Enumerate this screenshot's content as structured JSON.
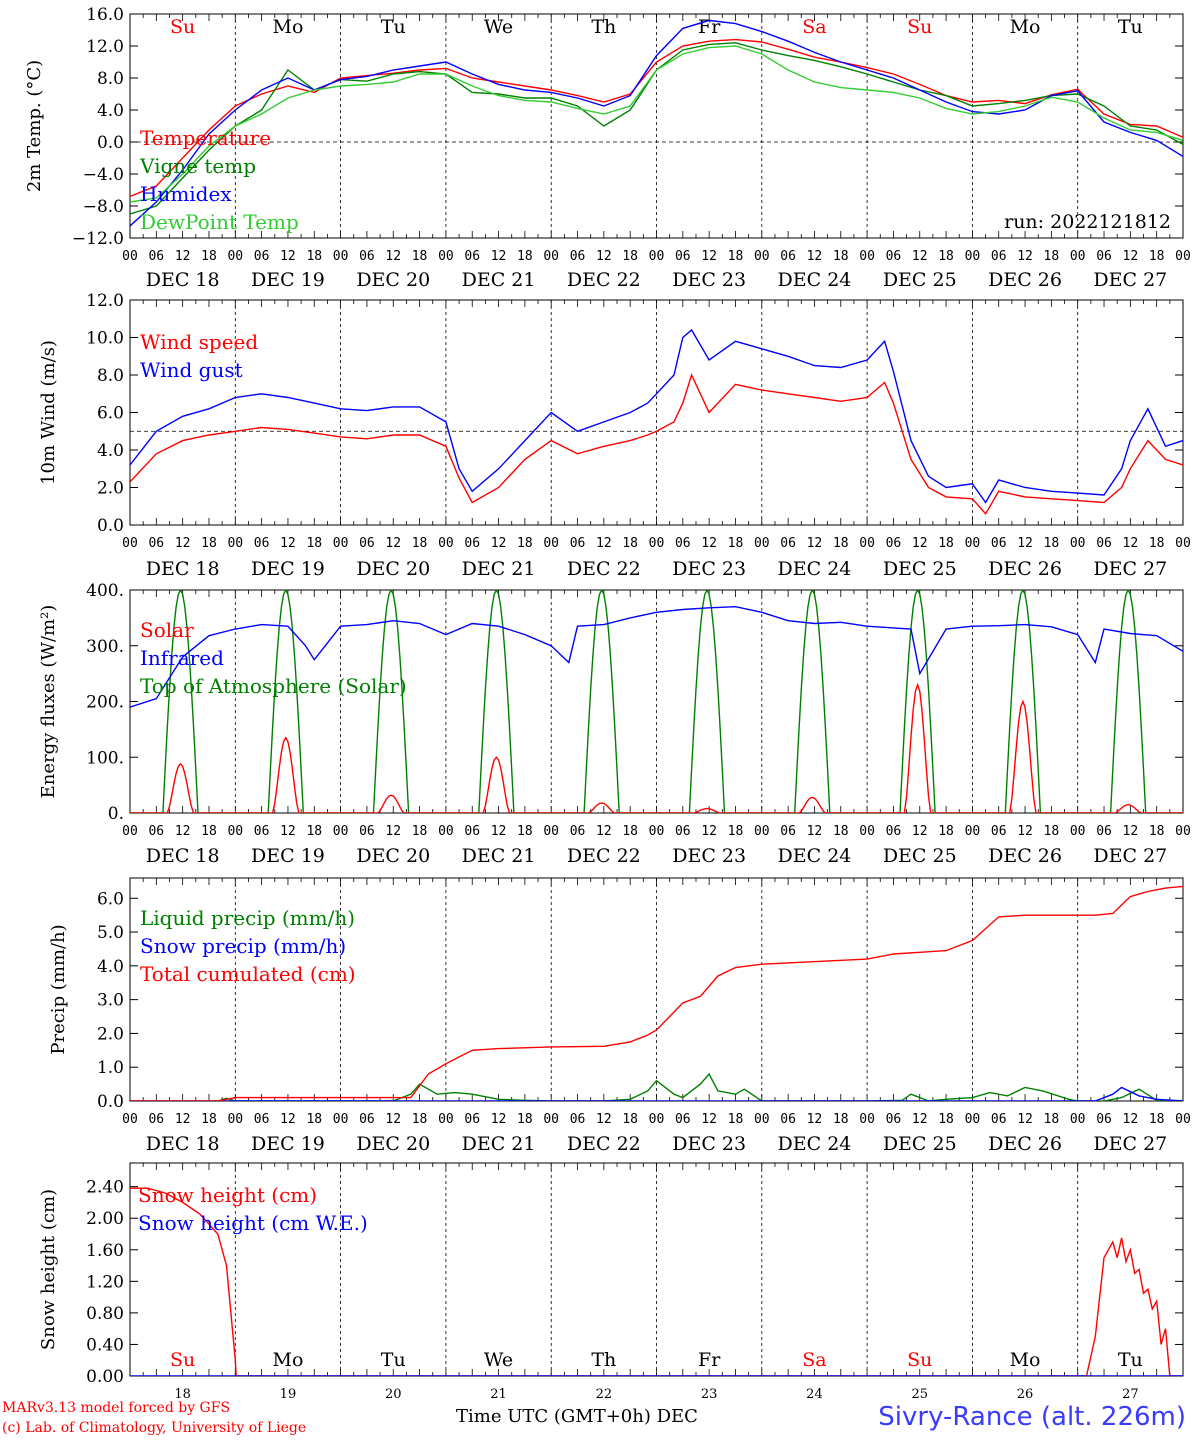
{
  "footer": {
    "model_line": "MARv3.13 model forced by GFS",
    "credit_line": "(c) Lab. of Climatology, University of Liege",
    "axis_title": "Time UTC (GMT+0h)",
    "month": "DEC",
    "station": "Sivry-Rance (alt. 226m)"
  },
  "days": {
    "weekday_labels": [
      "Su",
      "Mo",
      "Tu",
      "We",
      "Th",
      "Fr",
      "Sa",
      "Su",
      "Mo",
      "Tu"
    ],
    "weekday_colors": [
      "#ff0000",
      "#000000",
      "#000000",
      "#000000",
      "#000000",
      "#000000",
      "#ff0000",
      "#ff0000",
      "#000000",
      "#000000"
    ],
    "date_labels": [
      "DEC 18",
      "DEC 19",
      "DEC 20",
      "DEC 21",
      "DEC 22",
      "DEC 23",
      "DEC 24",
      "DEC 25",
      "DEC 26",
      "DEC 27"
    ],
    "day_numbers": [
      "18",
      "19",
      "20",
      "21",
      "22",
      "23",
      "24",
      "25",
      "26",
      "27"
    ],
    "hour_labels": [
      "00",
      "06",
      "12",
      "18"
    ]
  },
  "chart_data": [
    {
      "id": "temperature",
      "type": "line",
      "ylabel": "2m Temp. (°C)",
      "ylim": [
        -12,
        16
      ],
      "yticks": [
        "16.0",
        "12.0",
        "8.0",
        "4.0",
        "0.0",
        "−4.0",
        "−8.0",
        "−12.0"
      ],
      "yticks_values": [
        16,
        12,
        8,
        4,
        0,
        -4,
        -8,
        -12
      ],
      "reference_line": 0,
      "annotation": "run: 2022121812",
      "x_unit": "hours from DEC 18 00 UTC",
      "xlim": [
        0,
        240
      ],
      "series": [
        {
          "name": "Temperature",
          "color": "#ff0000",
          "x": [
            0,
            6,
            12,
            18,
            24,
            30,
            36,
            42,
            48,
            54,
            60,
            66,
            72,
            78,
            84,
            90,
            96,
            102,
            108,
            114,
            120,
            126,
            132,
            138,
            144,
            150,
            156,
            162,
            168,
            174,
            180,
            186,
            192,
            198,
            204,
            210,
            216,
            222,
            228,
            234,
            240
          ],
          "y": [
            -6.8,
            -5.5,
            -2.0,
            1.5,
            4.5,
            6.0,
            7.0,
            6.2,
            8.0,
            8.3,
            8.6,
            9.0,
            9.2,
            8.0,
            7.5,
            7.0,
            6.5,
            5.8,
            5.0,
            6.0,
            10.0,
            12.0,
            12.6,
            12.8,
            12.5,
            11.6,
            10.6,
            10.0,
            9.3,
            8.5,
            7.2,
            5.8,
            5.0,
            5.2,
            4.8,
            5.9,
            6.6,
            3.5,
            2.2,
            2.0,
            0.6
          ]
        },
        {
          "name": "Vigne temp",
          "color": "#008000",
          "x": [
            0,
            6,
            12,
            18,
            24,
            30,
            36,
            42,
            48,
            54,
            60,
            66,
            72,
            78,
            84,
            90,
            96,
            102,
            108,
            114,
            120,
            126,
            132,
            138,
            144,
            150,
            156,
            162,
            168,
            174,
            180,
            186,
            192,
            198,
            204,
            210,
            216,
            222,
            228,
            234,
            240
          ],
          "y": [
            -9.0,
            -8.0,
            -4.5,
            -1.0,
            2.0,
            4.0,
            9.0,
            6.5,
            7.8,
            7.6,
            8.5,
            8.8,
            8.5,
            6.2,
            6.0,
            5.5,
            5.5,
            4.5,
            2.0,
            4.0,
            9.0,
            11.5,
            12.2,
            12.4,
            11.5,
            10.8,
            10.2,
            9.4,
            8.5,
            7.5,
            6.5,
            5.8,
            4.5,
            4.8,
            5.2,
            5.8,
            6.0,
            4.5,
            2.0,
            1.5,
            -0.3
          ]
        },
        {
          "name": "Humidex",
          "color": "#0000ff",
          "x": [
            0,
            6,
            12,
            18,
            24,
            30,
            36,
            42,
            48,
            54,
            60,
            66,
            72,
            78,
            84,
            90,
            96,
            102,
            108,
            114,
            120,
            126,
            132,
            138,
            144,
            150,
            156,
            162,
            168,
            174,
            180,
            186,
            192,
            198,
            204,
            210,
            216,
            222,
            228,
            234,
            240
          ],
          "y": [
            -10.5,
            -7.5,
            -3.5,
            1.0,
            4.0,
            6.5,
            8.0,
            6.5,
            7.8,
            8.2,
            9.0,
            9.5,
            10.0,
            8.5,
            7.2,
            6.5,
            6.2,
            5.5,
            4.5,
            5.8,
            10.8,
            14.2,
            15.2,
            14.8,
            13.8,
            12.6,
            11.2,
            10.0,
            9.0,
            8.0,
            6.5,
            5.0,
            3.8,
            3.5,
            4.0,
            5.8,
            6.4,
            2.5,
            1.2,
            0.2,
            -1.8
          ]
        },
        {
          "name": "DewPoint Temp",
          "color": "#33cc33",
          "x": [
            0,
            6,
            12,
            18,
            24,
            30,
            36,
            42,
            48,
            54,
            60,
            66,
            72,
            78,
            84,
            90,
            96,
            102,
            108,
            114,
            120,
            126,
            132,
            138,
            144,
            150,
            156,
            162,
            168,
            174,
            180,
            186,
            192,
            198,
            204,
            210,
            216,
            222,
            228,
            234,
            240
          ],
          "y": [
            -7.5,
            -7.0,
            -4.0,
            -0.5,
            2.0,
            3.5,
            5.5,
            6.5,
            7.0,
            7.2,
            7.5,
            8.5,
            8.5,
            7.0,
            5.8,
            5.2,
            5.0,
            4.2,
            3.5,
            4.5,
            9.0,
            11.0,
            11.8,
            12.0,
            11.0,
            9.0,
            7.5,
            6.8,
            6.5,
            6.2,
            5.5,
            4.2,
            3.5,
            3.8,
            4.5,
            5.6,
            5.0,
            3.0,
            1.5,
            1.2,
            0.2
          ]
        }
      ]
    },
    {
      "id": "wind",
      "type": "line",
      "ylabel": "10m Wind (m/s)",
      "ylim": [
        0,
        12
      ],
      "yticks": [
        "12.0",
        "10.0",
        "8.0",
        "6.0",
        "4.0",
        "2.0",
        "0.0"
      ],
      "yticks_values": [
        12,
        10,
        8,
        6,
        4,
        2,
        0
      ],
      "reference_line": 5,
      "x_unit": "hours from DEC 18 00 UTC",
      "xlim": [
        0,
        240
      ],
      "series": [
        {
          "name": "Wind speed",
          "color": "#ff0000",
          "x": [
            0,
            6,
            12,
            18,
            24,
            30,
            36,
            42,
            48,
            54,
            60,
            66,
            72,
            75,
            78,
            84,
            90,
            96,
            102,
            108,
            114,
            118,
            120,
            124,
            126,
            128,
            132,
            138,
            144,
            150,
            156,
            162,
            168,
            172,
            174,
            178,
            182,
            186,
            192,
            195,
            198,
            204,
            210,
            216,
            222,
            226,
            228,
            232,
            236,
            240
          ],
          "y": [
            2.3,
            3.8,
            4.5,
            4.8,
            5.0,
            5.2,
            5.1,
            4.9,
            4.7,
            4.6,
            4.8,
            4.8,
            4.2,
            2.5,
            1.2,
            2.0,
            3.5,
            4.5,
            3.8,
            4.2,
            4.5,
            4.8,
            5.0,
            5.5,
            6.5,
            8.0,
            6.0,
            7.5,
            7.2,
            7.0,
            6.8,
            6.6,
            6.8,
            7.6,
            6.5,
            3.5,
            2.0,
            1.5,
            1.4,
            0.6,
            1.8,
            1.5,
            1.4,
            1.3,
            1.2,
            2.0,
            3.0,
            4.5,
            3.5,
            3.2
          ]
        },
        {
          "name": "Wind gust",
          "color": "#0000ff",
          "x": [
            0,
            6,
            12,
            18,
            24,
            30,
            36,
            42,
            48,
            54,
            60,
            66,
            72,
            75,
            78,
            84,
            90,
            96,
            102,
            108,
            114,
            118,
            120,
            124,
            126,
            128,
            132,
            138,
            144,
            150,
            156,
            162,
            168,
            172,
            174,
            178,
            182,
            186,
            192,
            195,
            198,
            204,
            210,
            216,
            222,
            226,
            228,
            232,
            236,
            240
          ],
          "y": [
            3.2,
            5.0,
            5.8,
            6.2,
            6.8,
            7.0,
            6.8,
            6.5,
            6.2,
            6.1,
            6.3,
            6.3,
            5.5,
            3.0,
            1.8,
            3.0,
            4.5,
            6.0,
            5.0,
            5.5,
            6.0,
            6.5,
            7.0,
            8.0,
            10.0,
            10.4,
            8.8,
            9.8,
            9.4,
            9.0,
            8.5,
            8.4,
            8.8,
            9.8,
            8.2,
            4.5,
            2.6,
            2.0,
            2.2,
            1.2,
            2.4,
            2.0,
            1.8,
            1.7,
            1.6,
            3.0,
            4.5,
            6.2,
            4.2,
            4.5
          ]
        }
      ]
    },
    {
      "id": "energy",
      "type": "line",
      "ylabel": "Energy fluxes (W/m²)",
      "ylim": [
        0,
        400
      ],
      "yticks": [
        "400.",
        "300.",
        "200.",
        "100.",
        "0."
      ],
      "yticks_values": [
        400,
        300,
        200,
        100,
        0
      ],
      "x_unit": "hours from DEC 18 00 UTC",
      "xlim": [
        0,
        240
      ],
      "solar_peaks": [
        88,
        135,
        32,
        100,
        18,
        8,
        28,
        230,
        200,
        15
      ],
      "series": [
        {
          "name": "Solar",
          "color": "#ff0000"
        },
        {
          "name": "Infrared",
          "color": "#0000ff",
          "x": [
            0,
            6,
            12,
            18,
            24,
            30,
            36,
            40,
            42,
            48,
            54,
            60,
            66,
            72,
            78,
            84,
            90,
            96,
            100,
            102,
            108,
            114,
            120,
            126,
            132,
            138,
            144,
            150,
            156,
            162,
            168,
            174,
            178,
            180,
            186,
            192,
            198,
            204,
            210,
            216,
            220,
            222,
            228,
            234,
            240
          ],
          "y": [
            190,
            205,
            280,
            318,
            330,
            338,
            335,
            300,
            275,
            335,
            338,
            345,
            340,
            320,
            340,
            335,
            320,
            300,
            270,
            335,
            338,
            350,
            360,
            365,
            368,
            370,
            360,
            345,
            340,
            342,
            335,
            332,
            330,
            250,
            330,
            335,
            336,
            338,
            334,
            320,
            270,
            330,
            322,
            318,
            290
          ]
        },
        {
          "name": "Top of Atmosphere (Solar)",
          "color": "#008000"
        }
      ]
    },
    {
      "id": "precip",
      "type": "line",
      "ylabel": "Precip (mm/h)",
      "ylim": [
        0,
        6.6
      ],
      "yticks": [
        "6.0",
        "5.0",
        "4.0",
        "3.0",
        "2.0",
        "1.0",
        "0.0"
      ],
      "yticks_values": [
        6,
        5,
        4,
        3,
        2,
        1,
        0
      ],
      "x_unit": "hours from DEC 18 00 UTC",
      "xlim": [
        0,
        240
      ],
      "series": [
        {
          "name": "Liquid precip (mm/h)",
          "color": "#008000",
          "x": [
            0,
            20,
            22,
            24,
            60,
            64,
            66,
            70,
            74,
            78,
            84,
            90,
            96,
            108,
            114,
            118,
            120,
            124,
            126,
            130,
            132,
            134,
            138,
            140,
            144,
            168,
            176,
            178,
            182,
            186,
            192,
            196,
            200,
            204,
            208,
            214,
            216,
            222,
            226,
            230,
            234,
            240
          ],
          "y": [
            0,
            0,
            0.08,
            0,
            0,
            0.2,
            0.5,
            0.2,
            0.25,
            0.2,
            0.05,
            0.02,
            0,
            0,
            0.05,
            0.3,
            0.6,
            0.2,
            0.1,
            0.5,
            0.8,
            0.3,
            0.2,
            0.35,
            0,
            0,
            0.02,
            0.2,
            0,
            0.05,
            0.1,
            0.25,
            0.15,
            0.4,
            0.3,
            0.05,
            0,
            0,
            0.1,
            0.35,
            0.02,
            0
          ]
        },
        {
          "name": "Snow precip (mm/h)",
          "color": "#0000ff",
          "x": [
            0,
            220,
            224,
            226,
            230,
            234,
            240
          ],
          "y": [
            0,
            0,
            0.2,
            0.4,
            0.15,
            0.05,
            0
          ]
        },
        {
          "name": "Total cumulated (cm)",
          "color": "#ff0000",
          "x": [
            0,
            20,
            24,
            64,
            68,
            72,
            78,
            84,
            96,
            108,
            114,
            118,
            120,
            126,
            130,
            134,
            138,
            144,
            168,
            174,
            180,
            186,
            192,
            198,
            204,
            210,
            216,
            220,
            224,
            228,
            232,
            236,
            240
          ],
          "y": [
            0,
            0,
            0.1,
            0.1,
            0.8,
            1.1,
            1.5,
            1.55,
            1.6,
            1.62,
            1.75,
            1.95,
            2.1,
            2.9,
            3.1,
            3.7,
            3.95,
            4.05,
            4.2,
            4.35,
            4.4,
            4.45,
            4.75,
            5.45,
            5.5,
            5.5,
            5.5,
            5.5,
            5.55,
            6.05,
            6.2,
            6.3,
            6.35
          ]
        }
      ]
    },
    {
      "id": "snow",
      "type": "line",
      "ylabel": "Snow height (cm)",
      "ylim": [
        0,
        2.7
      ],
      "yticks": [
        "2.40",
        "2.00",
        "1.60",
        "1.20",
        "0.80",
        "0.40",
        "0.00"
      ],
      "yticks_values": [
        2.4,
        2.0,
        1.6,
        1.2,
        0.8,
        0.4,
        0.0
      ],
      "x_unit": "hours from DEC 18 00 UTC",
      "xlim": [
        0,
        240
      ],
      "series": [
        {
          "name": "Snow height (cm)",
          "color": "#ff0000",
          "x": [
            0,
            4,
            8,
            12,
            16,
            20,
            22,
            23,
            24,
            24.2,
            26,
            218,
            220,
            222,
            224,
            225,
            226,
            227,
            228,
            229,
            230,
            231,
            232,
            233,
            234,
            235,
            236,
            237,
            238,
            239,
            240
          ],
          "y": [
            2.38,
            2.38,
            2.32,
            2.2,
            2.05,
            1.8,
            1.4,
            0.8,
            0.2,
            0,
            0,
            0,
            0.5,
            1.5,
            1.7,
            1.5,
            1.75,
            1.45,
            1.6,
            1.3,
            1.35,
            1.05,
            1.1,
            0.85,
            0.95,
            0.4,
            0.6,
            0.0,
            0,
            0,
            0
          ]
        },
        {
          "name": "Snow height (cm W.E.)",
          "color": "#0000ff",
          "x": [
            0,
            240
          ],
          "y": [
            0,
            0
          ]
        }
      ]
    }
  ]
}
